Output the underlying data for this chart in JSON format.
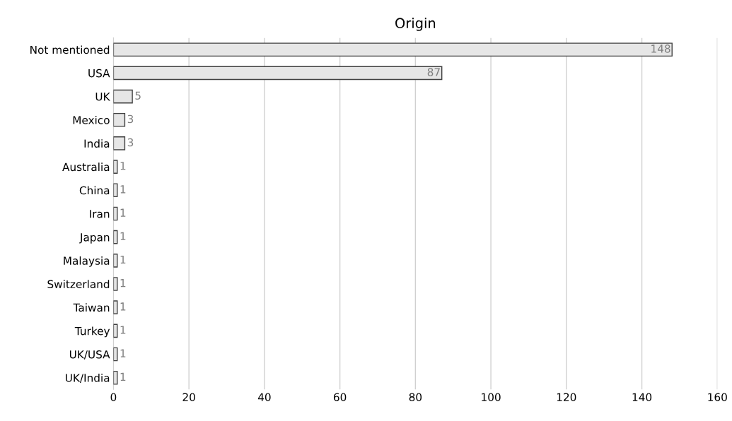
{
  "chart_data": {
    "type": "bar",
    "orientation": "horizontal",
    "title": "Origin",
    "categories": [
      "Not mentioned",
      "USA",
      "UK",
      "Mexico",
      "India",
      "Australia",
      "China",
      "Iran",
      "Japan",
      "Malaysia",
      "Switzerland",
      "Taiwan",
      "Turkey",
      "UK/USA",
      "UK/India"
    ],
    "values": [
      148,
      87,
      5,
      3,
      3,
      1,
      1,
      1,
      1,
      1,
      1,
      1,
      1,
      1,
      1
    ],
    "color": "#e6e6e6",
    "xlim": [
      0,
      160
    ],
    "xticks": [
      0,
      20,
      40,
      60,
      80,
      100,
      120,
      140,
      160
    ],
    "grid": "x",
    "data_labels": true
  }
}
